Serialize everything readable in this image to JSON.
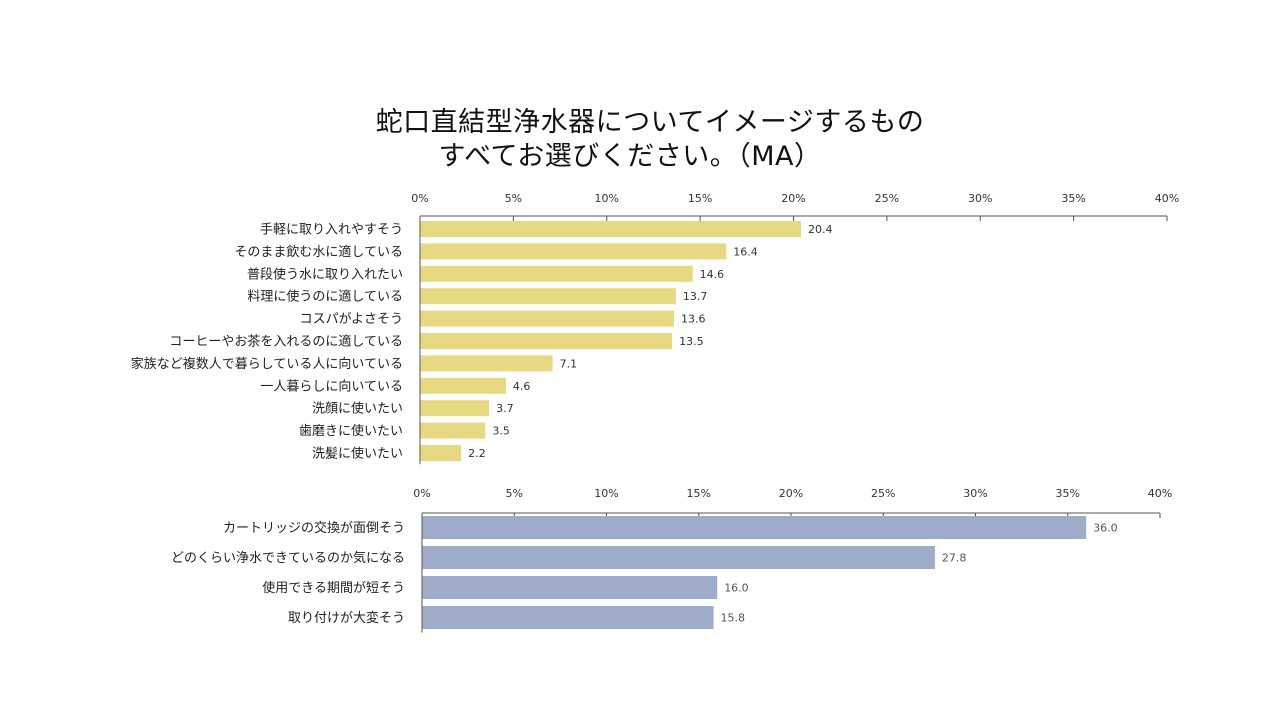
{
  "title": {
    "line1": "蛇口直結型浄水器についてイメージするもの",
    "line2": "すべてお選びください。（MA）"
  },
  "colors": {
    "positive": "#e6d981",
    "negative": "#9eabc9"
  },
  "chart_data": [
    {
      "type": "bar",
      "orientation": "horizontal",
      "name": "positive",
      "xlim": [
        0,
        40
      ],
      "ticks": [
        "0%",
        "5%",
        "10%",
        "15%",
        "20%",
        "25%",
        "30%",
        "35%",
        "40%"
      ],
      "categories": [
        "手軽に取り入れやすそう",
        "そのまま飲む水に適している",
        "普段使う水に取り入れたい",
        "料理に使うのに適している",
        "コスパがよさそう",
        "コーヒーやお茶を入れるのに適している",
        "家族など複数人で暮らしている人に向いている",
        "一人暮らしに向いている",
        "洗顔に使いたい",
        "歯磨きに使いたい",
        "洗髪に使いたい"
      ],
      "values": [
        20.4,
        16.4,
        14.6,
        13.7,
        13.6,
        13.5,
        7.1,
        4.6,
        3.7,
        3.5,
        2.2
      ],
      "value_labels": [
        "20.4",
        "16.4",
        "14.6",
        "13.7",
        "13.6",
        "13.5",
        "7.1",
        "4.6",
        "3.7",
        "3.5",
        "2.2"
      ],
      "color": "#e6d981"
    },
    {
      "type": "bar",
      "orientation": "horizontal",
      "name": "negative",
      "xlim": [
        0,
        40
      ],
      "ticks": [
        "0%",
        "5%",
        "10%",
        "15%",
        "20%",
        "25%",
        "30%",
        "35%",
        "40%"
      ],
      "categories": [
        "カートリッジの交換が面倒そう",
        "どのくらい浄水できているのか気になる",
        "使用できる期間が短そう",
        "取り付けが大変そう"
      ],
      "values": [
        36.0,
        27.8,
        16.0,
        15.8
      ],
      "value_labels": [
        "36.0",
        "27.8",
        "16.0",
        "15.8"
      ],
      "color": "#9eabc9"
    }
  ]
}
